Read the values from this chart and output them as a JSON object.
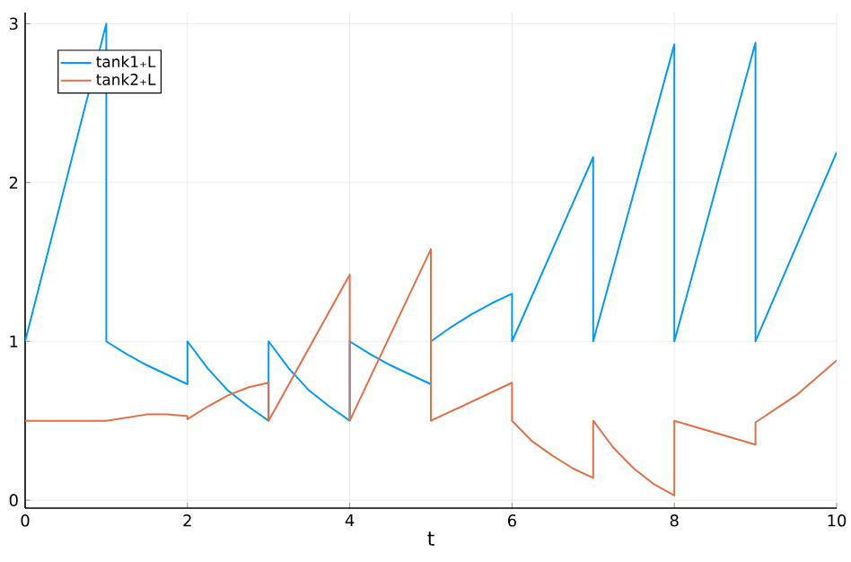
{
  "chart_data": {
    "type": "line",
    "xlabel": "t",
    "xlim": [
      0,
      10
    ],
    "xticks": [
      0,
      2,
      4,
      6,
      8,
      10
    ],
    "ylim": [
      -0.05,
      3.07
    ],
    "yticks": [
      0,
      1,
      2,
      3
    ],
    "grid": true,
    "legend": "top left",
    "series": [
      {
        "name": "tank1₊L",
        "color": "#009af9",
        "x": [
          0,
          1,
          1,
          1.25,
          1.5,
          1.75,
          2,
          2,
          2.25,
          2.5,
          2.75,
          3,
          3,
          3.25,
          3.5,
          3.75,
          4,
          4,
          4.25,
          4.5,
          4.75,
          5,
          5,
          5.25,
          5.5,
          5.75,
          6,
          6,
          7,
          7,
          8,
          8,
          9,
          9,
          10
        ],
        "values": [
          1,
          3,
          1,
          0.92,
          0.85,
          0.79,
          0.73,
          1,
          0.83,
          0.69,
          0.59,
          0.5,
          1,
          0.83,
          0.69,
          0.59,
          0.5,
          1,
          0.92,
          0.85,
          0.79,
          0.73,
          1,
          1.09,
          1.17,
          1.24,
          1.3,
          1,
          2.16,
          1,
          2.87,
          1,
          2.88,
          1,
          2.19
        ]
      },
      {
        "name": "tank2₊L",
        "color": "#e26f46",
        "x": [
          0,
          1,
          1.25,
          1.5,
          1.75,
          2,
          2,
          2.25,
          2.5,
          2.75,
          3,
          3,
          4,
          4,
          5,
          5,
          6,
          6,
          6.25,
          6.5,
          6.75,
          7,
          7,
          7.25,
          7.5,
          7.75,
          8,
          8,
          9,
          9,
          9.5,
          10
        ],
        "values": [
          0.5,
          0.5,
          0.52,
          0.54,
          0.54,
          0.53,
          0.51,
          0.59,
          0.66,
          0.71,
          0.74,
          0.5,
          1.42,
          0.5,
          1.58,
          0.5,
          0.74,
          0.5,
          0.37,
          0.28,
          0.2,
          0.14,
          0.5,
          0.33,
          0.2,
          0.1,
          0.03,
          0.5,
          0.35,
          0.49,
          0.66,
          0.88
        ]
      }
    ]
  }
}
